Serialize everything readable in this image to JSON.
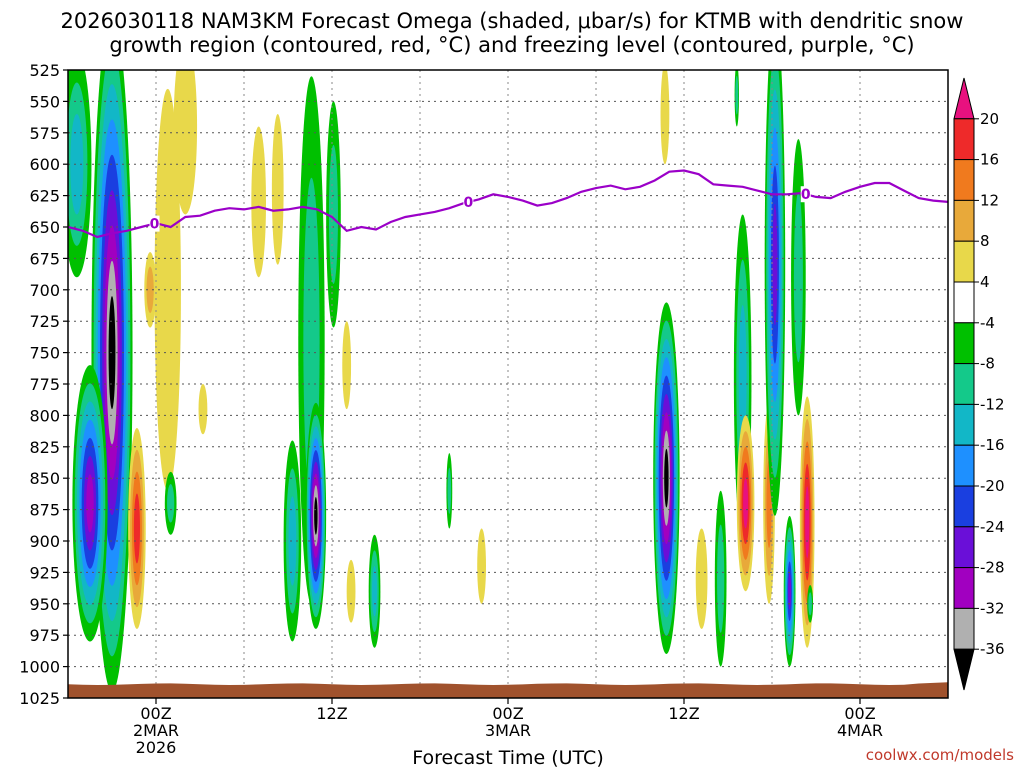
{
  "chart_data": {
    "type": "heatmap",
    "title_line1": "2026030118 NAM3KM Forecast Omega (shaded, μbar/s) for KTMB with dendritic snow",
    "title_line2": "growth region (contoured, red, °C) and freezing level (contoured, purple, °C)",
    "xlabel": "Forecast Time (UTC)",
    "credit": "coolwx.com/models",
    "y_ticks": [
      "525",
      "550",
      "575",
      "600",
      "625",
      "650",
      "675",
      "700",
      "725",
      "750",
      "775",
      "800",
      "825",
      "850",
      "875",
      "900",
      "925",
      "950",
      "975",
      "1000",
      "1025"
    ],
    "y_range": [
      525,
      1025
    ],
    "y_reversed": true,
    "x_range_hours": [
      18,
      78
    ],
    "x_ticks": [
      {
        "hour": 24,
        "line1": "00Z",
        "line2": "2MAR",
        "line3": "2026"
      },
      {
        "hour": 36,
        "line1": "12Z",
        "line2": "",
        "line3": ""
      },
      {
        "hour": 48,
        "line1": "00Z",
        "line2": "3MAR",
        "line3": ""
      },
      {
        "hour": 60,
        "line1": "12Z",
        "line2": "",
        "line3": ""
      },
      {
        "hour": 72,
        "line1": "00Z",
        "line2": "4MAR",
        "line3": ""
      }
    ],
    "colorbar": {
      "labels": [
        "20",
        "16",
        "12",
        "8",
        "4",
        "-4",
        "-8",
        "-12",
        "-16",
        "-20",
        "-24",
        "-28",
        "-32",
        "-36"
      ],
      "colors": [
        "#e8117f",
        "#ee2a2a",
        "#f07a1e",
        "#e8a93a",
        "#e8d84a",
        "#ffffff",
        "#00c000",
        "#14c98a",
        "#12b7c7",
        "#1e90ff",
        "#1a3fe0",
        "#6a0fd8",
        "#a100c0",
        "#b0b0b0",
        "#000000"
      ]
    },
    "freezing_level": {
      "label": "0",
      "color": "#9b00c8",
      "points": [
        [
          18,
          650
        ],
        [
          19,
          653
        ],
        [
          20,
          658
        ],
        [
          21,
          655
        ],
        [
          22,
          653
        ],
        [
          23,
          650
        ],
        [
          24,
          647
        ],
        [
          25,
          650
        ],
        [
          26,
          642
        ],
        [
          27,
          641
        ],
        [
          28,
          637
        ],
        [
          29,
          635
        ],
        [
          30,
          636
        ],
        [
          31,
          634
        ],
        [
          32,
          637
        ],
        [
          33,
          636
        ],
        [
          34,
          634
        ],
        [
          35,
          636
        ],
        [
          36,
          642
        ],
        [
          37,
          653
        ],
        [
          38,
          650
        ],
        [
          39,
          652
        ],
        [
          40,
          646
        ],
        [
          41,
          642
        ],
        [
          42,
          640
        ],
        [
          43,
          638
        ],
        [
          44,
          635
        ],
        [
          45,
          631
        ],
        [
          46,
          628
        ],
        [
          47,
          624
        ],
        [
          48,
          626
        ],
        [
          49,
          629
        ],
        [
          50,
          633
        ],
        [
          51,
          631
        ],
        [
          52,
          627
        ],
        [
          53,
          622
        ],
        [
          54,
          619
        ],
        [
          55,
          617
        ],
        [
          56,
          620
        ],
        [
          57,
          618
        ],
        [
          58,
          613
        ],
        [
          59,
          606
        ],
        [
          60,
          605
        ],
        [
          61,
          608
        ],
        [
          62,
          616
        ],
        [
          63,
          617
        ],
        [
          64,
          618
        ],
        [
          65,
          621
        ],
        [
          66,
          624
        ],
        [
          67,
          624
        ],
        [
          68,
          623
        ],
        [
          69,
          626
        ],
        [
          70,
          627
        ],
        [
          71,
          622
        ],
        [
          72,
          618
        ],
        [
          73,
          615
        ],
        [
          74,
          615
        ],
        [
          75,
          621
        ],
        [
          76,
          627
        ],
        [
          77,
          629
        ],
        [
          78,
          630
        ]
      ],
      "label_hours": [
        23.9,
        45.3,
        68.3
      ]
    },
    "surface_band": {
      "top": 1014,
      "bottom": 1025,
      "color": "#a0522d"
    },
    "features": [
      {
        "type": "omega",
        "hour": 21,
        "center": 750,
        "half_width_h": 1.4,
        "half_height": 270,
        "value": -36
      },
      {
        "type": "omega",
        "hour": 19.5,
        "center": 870,
        "half_width_h": 1.2,
        "half_height": 110,
        "value": -28
      },
      {
        "type": "omega",
        "hour": 18.6,
        "center": 600,
        "half_width_h": 1.0,
        "half_height": 90,
        "value": -12
      },
      {
        "type": "omega",
        "hour": 22.7,
        "center": 890,
        "half_width_h": 0.6,
        "half_height": 80,
        "value": 16
      },
      {
        "type": "omega",
        "hour": 24.8,
        "center": 700,
        "half_width_h": 0.9,
        "half_height": 160,
        "value": 4
      },
      {
        "type": "omega",
        "hour": 23.6,
        "center": 700,
        "half_width_h": 0.4,
        "half_height": 30,
        "value": 8
      },
      {
        "type": "omega",
        "hour": 25.0,
        "center": 870,
        "half_width_h": 0.4,
        "half_height": 25,
        "value": -8
      },
      {
        "type": "omega",
        "hour": 26.0,
        "center": 570,
        "half_width_h": 0.8,
        "half_height": 70,
        "value": 4
      },
      {
        "type": "omega",
        "hour": 27.2,
        "center": 795,
        "half_width_h": 0.3,
        "half_height": 20,
        "value": 4
      },
      {
        "type": "omega",
        "hour": 31.0,
        "center": 630,
        "half_width_h": 0.5,
        "half_height": 60,
        "value": 4
      },
      {
        "type": "omega",
        "hour": 32.3,
        "center": 620,
        "half_width_h": 0.4,
        "half_height": 60,
        "value": 4
      },
      {
        "type": "omega",
        "hour": 34.6,
        "center": 740,
        "half_width_h": 0.9,
        "half_height": 210,
        "value": -8
      },
      {
        "type": "omega",
        "hour": 34.9,
        "center": 880,
        "half_width_h": 0.7,
        "half_height": 90,
        "value": -36
      },
      {
        "type": "omega",
        "hour": 33.3,
        "center": 900,
        "half_width_h": 0.6,
        "half_height": 80,
        "value": -12
      },
      {
        "type": "omega",
        "hour": 36.1,
        "center": 640,
        "half_width_h": 0.5,
        "half_height": 90,
        "value": -8
      },
      {
        "type": "omega",
        "hour": 37.0,
        "center": 760,
        "half_width_h": 0.3,
        "half_height": 35,
        "value": 4
      },
      {
        "type": "omega",
        "hour": 37.3,
        "center": 940,
        "half_width_h": 0.3,
        "half_height": 25,
        "value": 4
      },
      {
        "type": "omega",
        "hour": 38.9,
        "center": 940,
        "half_width_h": 0.4,
        "half_height": 45,
        "value": -12
      },
      {
        "type": "omega",
        "hour": 44.0,
        "center": 860,
        "half_width_h": 0.2,
        "half_height": 30,
        "value": -8
      },
      {
        "type": "omega",
        "hour": 46.2,
        "center": 920,
        "half_width_h": 0.3,
        "half_height": 30,
        "value": 4
      },
      {
        "type": "omega",
        "hour": 58.8,
        "center": 850,
        "half_width_h": 0.9,
        "half_height": 140,
        "value": -36
      },
      {
        "type": "omega",
        "hour": 58.7,
        "center": 560,
        "half_width_h": 0.3,
        "half_height": 40,
        "value": 4
      },
      {
        "type": "omega",
        "hour": 61.2,
        "center": 930,
        "half_width_h": 0.4,
        "half_height": 40,
        "value": 4
      },
      {
        "type": "omega",
        "hour": 62.5,
        "center": 930,
        "half_width_h": 0.4,
        "half_height": 70,
        "value": -8
      },
      {
        "type": "omega",
        "hour": 64.0,
        "center": 770,
        "half_width_h": 0.6,
        "half_height": 130,
        "value": -12
      },
      {
        "type": "omega",
        "hour": 64.2,
        "center": 870,
        "half_width_h": 0.6,
        "half_height": 70,
        "value": 20
      },
      {
        "type": "omega",
        "hour": 63.6,
        "center": 545,
        "half_width_h": 0.15,
        "half_height": 25,
        "value": -8
      },
      {
        "type": "omega",
        "hour": 65.8,
        "center": 870,
        "half_width_h": 0.4,
        "half_height": 80,
        "value": 12
      },
      {
        "type": "omega",
        "hour": 66.2,
        "center": 680,
        "half_width_h": 0.7,
        "half_height": 200,
        "value": -24
      },
      {
        "type": "omega",
        "hour": 67.2,
        "center": 940,
        "half_width_h": 0.4,
        "half_height": 60,
        "value": -24
      },
      {
        "type": "omega",
        "hour": 67.8,
        "center": 690,
        "half_width_h": 0.5,
        "half_height": 110,
        "value": -8
      },
      {
        "type": "omega",
        "hour": 68.4,
        "center": 885,
        "half_width_h": 0.5,
        "half_height": 100,
        "value": 20
      },
      {
        "type": "omega",
        "hour": 68.6,
        "center": 950,
        "half_width_h": 0.2,
        "half_height": 15,
        "value": -8
      }
    ]
  }
}
